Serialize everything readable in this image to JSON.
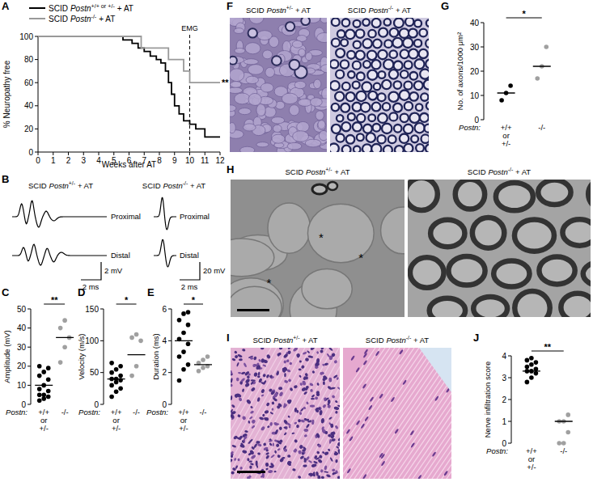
{
  "chart_data": [
    {
      "panel": "A",
      "type": "line",
      "line_style": "step",
      "legend": "top",
      "series": [
        {
          "name": {
            "strain": "SCID",
            "gene": "Postn",
            "genotype": "+/+ or +/-",
            "treatment": "+ AT"
          },
          "color": "#000000",
          "x": [
            0,
            5.6,
            6.2,
            6.6,
            7.0,
            7.4,
            7.8,
            8.1,
            8.4,
            8.6,
            8.8,
            9.0,
            9.3,
            9.6,
            10.0,
            10.4,
            11.0,
            12
          ],
          "values": [
            100,
            97,
            94,
            90,
            87,
            83,
            80,
            77,
            70,
            60,
            50,
            40,
            33,
            27,
            24,
            20,
            13,
            13
          ]
        },
        {
          "name": {
            "strain": "SCID",
            "gene": "Postn",
            "genotype": "-/-",
            "treatment": "+ AT"
          },
          "color": "#999999",
          "x": [
            0,
            6.8,
            8.6,
            9.6,
            10.0,
            12
          ],
          "values": [
            100,
            90,
            80,
            70,
            60,
            60
          ]
        }
      ],
      "xlim": [
        0,
        12
      ],
      "xticks": [
        0,
        1,
        2,
        3,
        4,
        5,
        6,
        7,
        8,
        9,
        10,
        11,
        12
      ],
      "ylim": [
        0,
        100
      ],
      "yticks": [
        0,
        20,
        40,
        60,
        80,
        100
      ],
      "x_label": "Weeks after AT",
      "y_label": "% Neuropathy free",
      "reference_line": {
        "x": 10,
        "label": "EMG"
      },
      "significance": "**"
    },
    {
      "panel": "C",
      "type": "dot",
      "categories": [
        "+/+ or +/-",
        "-/-"
      ],
      "category_axis_label": "Postn:",
      "values": [
        [
          2,
          3,
          4,
          5,
          5,
          7,
          8,
          10,
          13,
          15,
          17,
          19,
          20
        ],
        [
          22,
          30,
          35,
          40,
          44
        ]
      ],
      "means": [
        10,
        35
      ],
      "colors": [
        "#000000",
        "#a0a0a0"
      ],
      "ylim": [
        0,
        50
      ],
      "yticks": [
        0,
        10,
        20,
        30,
        40,
        50
      ],
      "y_label": "Amplitude (mV)",
      "significance": "**"
    },
    {
      "panel": "D",
      "type": "dot",
      "categories": [
        "+/+ or +/-",
        "-/-"
      ],
      "category_axis_label": "Postn:",
      "values": [
        [
          12,
          20,
          25,
          30,
          35,
          38,
          40,
          40,
          45,
          50,
          55,
          60,
          65
        ],
        [
          45,
          60,
          100,
          105,
          110
        ]
      ],
      "means": [
        40,
        78
      ],
      "colors": [
        "#000000",
        "#a0a0a0"
      ],
      "ylim": [
        0,
        150
      ],
      "yticks": [
        0,
        50,
        100,
        150
      ],
      "y_label": "Velocity (m/s)",
      "significance": "*"
    },
    {
      "panel": "E",
      "type": "dot",
      "categories": [
        "+/+ or +/-",
        "-/-"
      ],
      "category_axis_label": "Postn:",
      "values": [
        [
          1.5,
          2.2,
          2.5,
          3.0,
          3.3,
          3.8,
          4.1,
          4.5,
          5.0,
          5.3,
          5.7,
          5.8
        ],
        [
          2.1,
          2.3,
          2.4,
          2.6,
          2.8,
          3.0
        ]
      ],
      "means": [
        4,
        2.5
      ],
      "colors": [
        "#000000",
        "#a0a0a0"
      ],
      "ylim": [
        0,
        6
      ],
      "yticks": [
        0,
        2,
        4,
        6
      ],
      "y_label": "Duration (ms)",
      "significance": "*"
    },
    {
      "panel": "G",
      "type": "dot",
      "categories": [
        "+/+ or +/-",
        "-/-"
      ],
      "category_axis_label": "Postn:",
      "values": [
        [
          8,
          11,
          14
        ],
        [
          17,
          22,
          30
        ]
      ],
      "means": [
        11,
        22
      ],
      "colors": [
        "#000000",
        "#a0a0a0"
      ],
      "ylim": [
        0,
        40
      ],
      "yticks": [
        0,
        10,
        20,
        30,
        40
      ],
      "y_label": "No. of axons/1000 μm²",
      "significance": "*"
    },
    {
      "panel": "J",
      "type": "dot",
      "categories": [
        "+/+ or +/-",
        "-/-"
      ],
      "category_axis_label": "Postn:",
      "values": [
        [
          2.8,
          3.0,
          3.2,
          3.3,
          3.3,
          3.4,
          3.5,
          3.6,
          3.7,
          3.8,
          3.9
        ],
        [
          0,
          0,
          0.5,
          1,
          1,
          1.3
        ]
      ],
      "means": [
        3.3,
        1
      ],
      "colors": [
        "#000000",
        "#a0a0a0"
      ],
      "ylim": [
        0,
        4
      ],
      "yticks": [
        0,
        1,
        2,
        3,
        4
      ],
      "y_label": "Nerve infiltration score",
      "significance": "**"
    }
  ],
  "images": [
    {
      "panel": "B",
      "type": "trace",
      "left": {
        "label": {
          "strain": "SCID",
          "gene": "Postn",
          "genotype": "+/-",
          "treatment": "+ AT"
        },
        "traces": [
          "Proximal",
          "Distal"
        ],
        "scale_y": "2 mV",
        "scale_x": "2 ms"
      },
      "right": {
        "label": {
          "strain": "SCID",
          "gene": "Postn",
          "genotype": "-/-",
          "treatment": "+ AT"
        },
        "traces": [
          "Proximal",
          "Distal"
        ],
        "scale_y": "20 mV",
        "scale_x": "2 ms"
      }
    },
    {
      "panel": "F",
      "type": "micrograph",
      "left": {
        "label": {
          "strain": "SCID",
          "gene": "Postn",
          "genotype": "+/-",
          "treatment": "+ AT"
        }
      },
      "right": {
        "label": {
          "strain": "SCID",
          "gene": "Postn",
          "genotype": "-/-",
          "treatment": "+ AT"
        }
      }
    },
    {
      "panel": "H",
      "type": "micrograph",
      "left": {
        "label": {
          "strain": "SCID",
          "gene": "Postn",
          "genotype": "+/-",
          "treatment": "+ AT"
        },
        "markers": [
          "*",
          "*",
          "*"
        ]
      },
      "right": {
        "label": {
          "strain": "SCID",
          "gene": "Postn",
          "genotype": "-/-",
          "treatment": "+ AT"
        }
      }
    },
    {
      "panel": "I",
      "type": "micrograph",
      "left": {
        "label": {
          "strain": "SCID",
          "gene": "Postn",
          "genotype": "+/-",
          "treatment": "+ AT"
        }
      },
      "right": {
        "label": {
          "strain": "SCID",
          "gene": "Postn",
          "genotype": "-/-",
          "treatment": "+ AT"
        }
      }
    }
  ]
}
